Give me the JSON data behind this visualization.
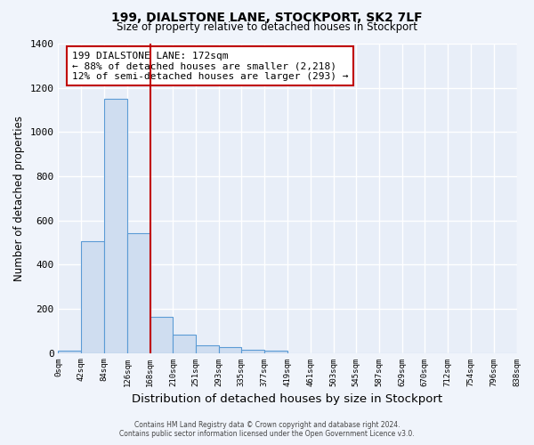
{
  "title1": "199, DIALSTONE LANE, STOCKPORT, SK2 7LF",
  "title2": "Size of property relative to detached houses in Stockport",
  "xlabel": "Distribution of detached houses by size in Stockport",
  "ylabel": "Number of detached properties",
  "footer1": "Contains HM Land Registry data © Crown copyright and database right 2024.",
  "footer2": "Contains public sector information licensed under the Open Government Licence v3.0.",
  "annotation_line1": "199 DIALSTONE LANE: 172sqm",
  "annotation_line2": "← 88% of detached houses are smaller (2,218)",
  "annotation_line3": "12% of semi-detached houses are larger (293) →",
  "bar_color": "#cfddf0",
  "bar_edge_color": "#5b9bd5",
  "bg_color": "#f0f4fb",
  "plot_bg_color": "#e8eef8",
  "grid_color": "#ffffff",
  "red_line_color": "#c00000",
  "red_line_x": 168,
  "bins": [
    0,
    42,
    84,
    126,
    168,
    210,
    251,
    293,
    335,
    377,
    419,
    461,
    503,
    545,
    587,
    629,
    670,
    712,
    754,
    796,
    838
  ],
  "bar_heights": [
    10,
    505,
    1150,
    540,
    163,
    82,
    36,
    28,
    13,
    10,
    0,
    0,
    0,
    0,
    0,
    0,
    0,
    0,
    0,
    0
  ],
  "ylim": [
    0,
    1400
  ],
  "yticks": [
    0,
    200,
    400,
    600,
    800,
    1000,
    1200,
    1400
  ],
  "annotation_box_color": "#ffffff",
  "annotation_box_edgecolor": "#c00000"
}
